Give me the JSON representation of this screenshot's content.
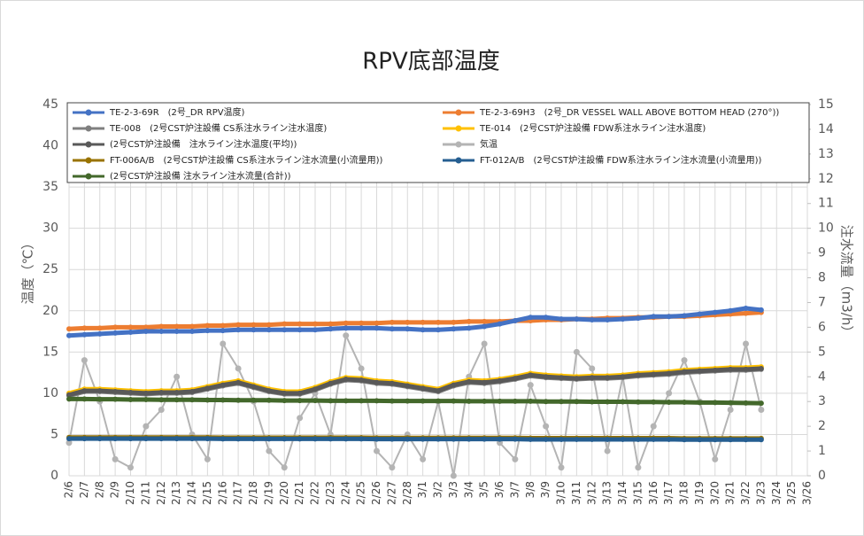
{
  "chart_data": {
    "type": "line",
    "title": "RPV底部温度",
    "y_label": "温度（℃）",
    "y2_label": "注水流量（m3/h）",
    "categories": [
      "2/6",
      "2/7",
      "2/8",
      "2/9",
      "2/10",
      "2/11",
      "2/12",
      "2/13",
      "2/14",
      "2/15",
      "2/16",
      "2/17",
      "2/18",
      "2/19",
      "2/20",
      "2/21",
      "2/22",
      "2/23",
      "2/24",
      "2/25",
      "2/26",
      "2/27",
      "2/28",
      "3/1",
      "3/2",
      "3/3",
      "3/4",
      "3/5",
      "3/6",
      "3/7",
      "3/8",
      "3/9",
      "3/10",
      "3/11",
      "3/12",
      "3/13",
      "3/14",
      "3/15",
      "3/16",
      "3/17",
      "3/18",
      "3/19",
      "3/20",
      "3/21",
      "3/22",
      "3/23",
      "3/24",
      "3/25",
      "3/26"
    ],
    "ylim": [
      0,
      45
    ],
    "yticks": [
      0,
      5,
      10,
      15,
      20,
      25,
      30,
      35,
      40,
      45
    ],
    "y2lim": [
      0,
      15
    ],
    "y2ticks": [
      0,
      1,
      2,
      3,
      4,
      5,
      6,
      7,
      8,
      9,
      10,
      11,
      12,
      13,
      14,
      15
    ],
    "grid": true,
    "series": [
      {
        "name": "TE-2-3-69R　(2号_DR RPV温度)",
        "color": "#4472c4",
        "values": [
          17.0,
          17.1,
          17.2,
          17.3,
          17.4,
          17.5,
          17.5,
          17.5,
          17.5,
          17.6,
          17.6,
          17.7,
          17.7,
          17.7,
          17.7,
          17.7,
          17.7,
          17.8,
          17.9,
          17.9,
          17.9,
          17.8,
          17.8,
          17.7,
          17.7,
          17.8,
          17.9,
          18.1,
          18.4,
          18.8,
          19.2,
          19.2,
          19.0,
          19.0,
          18.9,
          18.9,
          19.0,
          19.1,
          19.3,
          19.3,
          19.4,
          19.6,
          19.8,
          20.0,
          20.3,
          20.1,
          null,
          null,
          null
        ]
      },
      {
        "name": "TE-2-3-69H3　(2号_DR VESSEL WALL ABOVE BOTTOM HEAD (270°))",
        "color": "#ed7d31",
        "values": [
          17.8,
          17.9,
          17.9,
          18.0,
          18.0,
          18.0,
          18.1,
          18.1,
          18.1,
          18.2,
          18.2,
          18.3,
          18.3,
          18.3,
          18.4,
          18.4,
          18.4,
          18.4,
          18.5,
          18.5,
          18.5,
          18.6,
          18.6,
          18.6,
          18.6,
          18.6,
          18.7,
          18.7,
          18.7,
          18.8,
          18.8,
          18.9,
          18.9,
          19.0,
          19.0,
          19.1,
          19.1,
          19.2,
          19.2,
          19.3,
          19.3,
          19.4,
          19.5,
          19.6,
          19.7,
          19.8,
          null,
          null,
          null
        ]
      },
      {
        "name": "TE-008　(2号CST炉注設備 CS系注水ライン注水温度)",
        "color": "#7f7f7f",
        "values": [
          9.7,
          10.2,
          10.2,
          10.1,
          10.0,
          9.9,
          10.0,
          10.0,
          10.1,
          10.5,
          10.9,
          11.2,
          10.7,
          10.2,
          9.9,
          9.9,
          10.4,
          11.1,
          11.6,
          11.5,
          11.2,
          11.1,
          10.8,
          10.5,
          10.2,
          10.9,
          11.3,
          11.2,
          11.4,
          11.7,
          12.1,
          11.9,
          11.8,
          11.7,
          11.8,
          11.8,
          11.9,
          12.1,
          12.2,
          12.3,
          12.5,
          12.6,
          12.7,
          12.8,
          12.8,
          12.9,
          null,
          null,
          null
        ]
      },
      {
        "name": "TE-014　(2号CST炉注設備 FDW系注水ライン注水温度)",
        "color": "#ffc000",
        "values": [
          10.0,
          10.5,
          10.5,
          10.4,
          10.3,
          10.2,
          10.3,
          10.3,
          10.4,
          10.8,
          11.2,
          11.5,
          11.0,
          10.5,
          10.2,
          10.2,
          10.7,
          11.4,
          11.9,
          11.8,
          11.5,
          11.4,
          11.1,
          10.8,
          10.5,
          11.2,
          11.6,
          11.5,
          11.7,
          12.0,
          12.4,
          12.2,
          12.1,
          12.0,
          12.1,
          12.1,
          12.2,
          12.4,
          12.5,
          12.6,
          12.8,
          12.9,
          13.0,
          13.1,
          13.1,
          13.2,
          null,
          null,
          null
        ]
      },
      {
        "name": "(2号CST炉注設備　注水ライン注水温度(平均))",
        "color": "#595959",
        "values": [
          9.8,
          10.3,
          10.3,
          10.2,
          10.1,
          10.0,
          10.1,
          10.1,
          10.2,
          10.6,
          11.0,
          11.3,
          10.8,
          10.3,
          10.0,
          10.0,
          10.5,
          11.2,
          11.7,
          11.6,
          11.3,
          11.2,
          10.9,
          10.6,
          10.3,
          11.0,
          11.4,
          11.3,
          11.5,
          11.8,
          12.2,
          12.0,
          11.9,
          11.8,
          11.9,
          11.9,
          12.0,
          12.2,
          12.3,
          12.4,
          12.6,
          12.7,
          12.8,
          12.9,
          12.9,
          13.0,
          null,
          null,
          null
        ]
      },
      {
        "name": "気温",
        "color": "#b4b4b4",
        "values": [
          4,
          14,
          9,
          2,
          1,
          6,
          8,
          12,
          5,
          2,
          16,
          13,
          9,
          3,
          1,
          7,
          10,
          5,
          17,
          13,
          3,
          1,
          5,
          2,
          9,
          0,
          12,
          16,
          4,
          2,
          11,
          6,
          1,
          15,
          13,
          3,
          12,
          1,
          6,
          10,
          14,
          9,
          2,
          8,
          16,
          8,
          null,
          null,
          null
        ]
      },
      {
        "name": "FT-006A/B　(2号CST炉注設備 CS系注水ライン注水流量(小流量用))",
        "color": "#997300",
        "axis": "y2",
        "values": [
          1.55,
          1.55,
          1.55,
          1.55,
          1.55,
          1.55,
          1.55,
          1.55,
          1.55,
          1.55,
          1.54,
          1.54,
          1.54,
          1.54,
          1.54,
          1.54,
          1.54,
          1.54,
          1.54,
          1.54,
          1.53,
          1.53,
          1.53,
          1.53,
          1.53,
          1.53,
          1.53,
          1.53,
          1.53,
          1.53,
          1.52,
          1.52,
          1.52,
          1.52,
          1.52,
          1.52,
          1.52,
          1.52,
          1.52,
          1.52,
          1.51,
          1.51,
          1.51,
          1.51,
          1.51,
          1.51,
          null,
          null,
          null
        ]
      },
      {
        "name": "FT-012A/B　(2号CST炉注設備 FDW系注水ライン注水流量(小流量用))",
        "color": "#255e91",
        "axis": "y2",
        "values": [
          1.5,
          1.5,
          1.5,
          1.5,
          1.5,
          1.5,
          1.5,
          1.5,
          1.5,
          1.5,
          1.49,
          1.49,
          1.49,
          1.49,
          1.49,
          1.49,
          1.49,
          1.49,
          1.49,
          1.49,
          1.48,
          1.48,
          1.48,
          1.48,
          1.48,
          1.48,
          1.48,
          1.48,
          1.48,
          1.48,
          1.47,
          1.47,
          1.47,
          1.47,
          1.47,
          1.47,
          1.47,
          1.47,
          1.47,
          1.47,
          1.46,
          1.46,
          1.46,
          1.46,
          1.46,
          1.46,
          null,
          null,
          null
        ]
      },
      {
        "name": "(2号CST炉注設備 注水ライン注水流量(合計))",
        "color": "#43682b",
        "axis": "y2",
        "values": [
          3.1,
          3.1,
          3.09,
          3.09,
          3.08,
          3.08,
          3.07,
          3.07,
          3.07,
          3.06,
          3.06,
          3.05,
          3.05,
          3.05,
          3.04,
          3.04,
          3.04,
          3.03,
          3.03,
          3.03,
          3.03,
          3.02,
          3.02,
          3.02,
          3.02,
          3.02,
          3.01,
          3.01,
          3.01,
          3.01,
          3.01,
          3.0,
          3.0,
          3.0,
          2.99,
          2.99,
          2.99,
          2.98,
          2.98,
          2.97,
          2.97,
          2.96,
          2.96,
          2.95,
          2.94,
          2.93,
          null,
          null,
          null
        ]
      }
    ]
  }
}
